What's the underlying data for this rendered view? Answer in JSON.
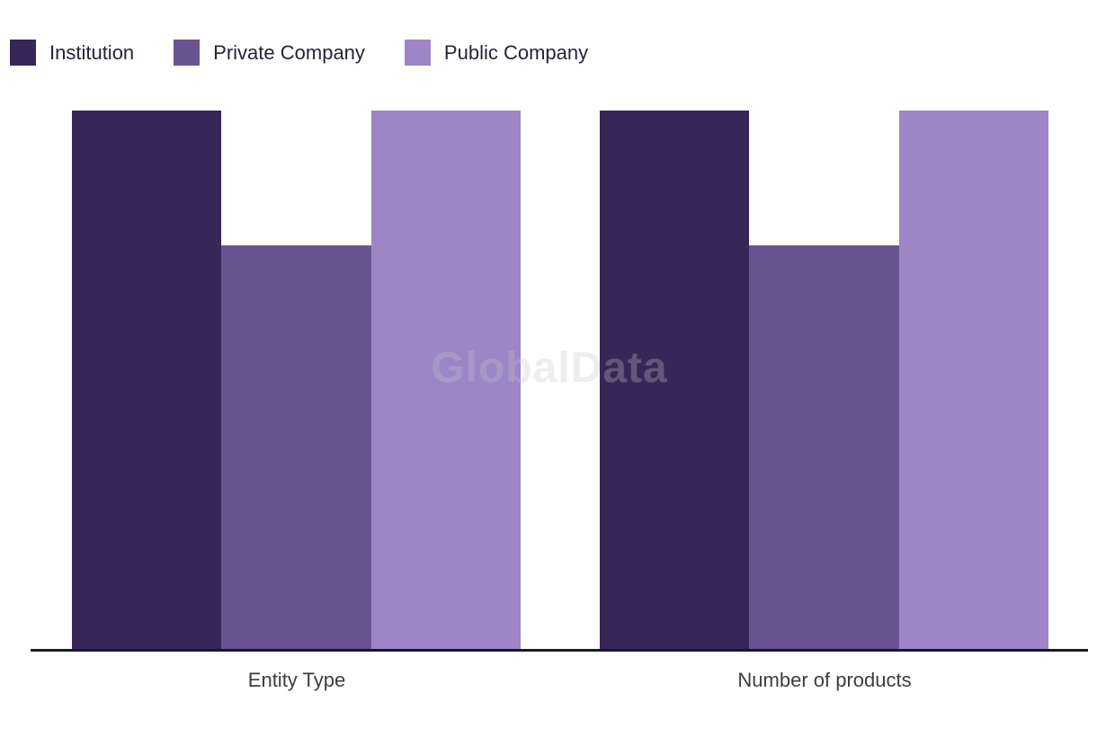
{
  "watermark": "GlobalData",
  "legend": {
    "items": [
      {
        "label": "Institution",
        "color": "#372658"
      },
      {
        "label": "Private Company",
        "color": "#6a5391"
      },
      {
        "label": "Public Company",
        "color": "#9d85c6"
      }
    ]
  },
  "chart_data": {
    "type": "bar",
    "categories": [
      "Entity Type",
      "Number of products"
    ],
    "series": [
      {
        "name": "Institution",
        "color": "#372658",
        "values": [
          100,
          100
        ]
      },
      {
        "name": "Private Company",
        "color": "#6a5391",
        "values": [
          75,
          75
        ]
      },
      {
        "name": "Public Company",
        "color": "#9d85c6",
        "values": [
          100,
          100
        ]
      }
    ],
    "ylim": [
      0,
      100
    ],
    "y_axis_visible": false,
    "value_labels_visible": false,
    "grid": false,
    "legend_position": "top-left",
    "axis_line_color": "#171a2b",
    "label_color": "#3d3d3d",
    "note": "No y-axis or value labels shown; values are relative heights normalized to 100 = tallest bar. Private Company bars are ~75% of the tallest."
  }
}
